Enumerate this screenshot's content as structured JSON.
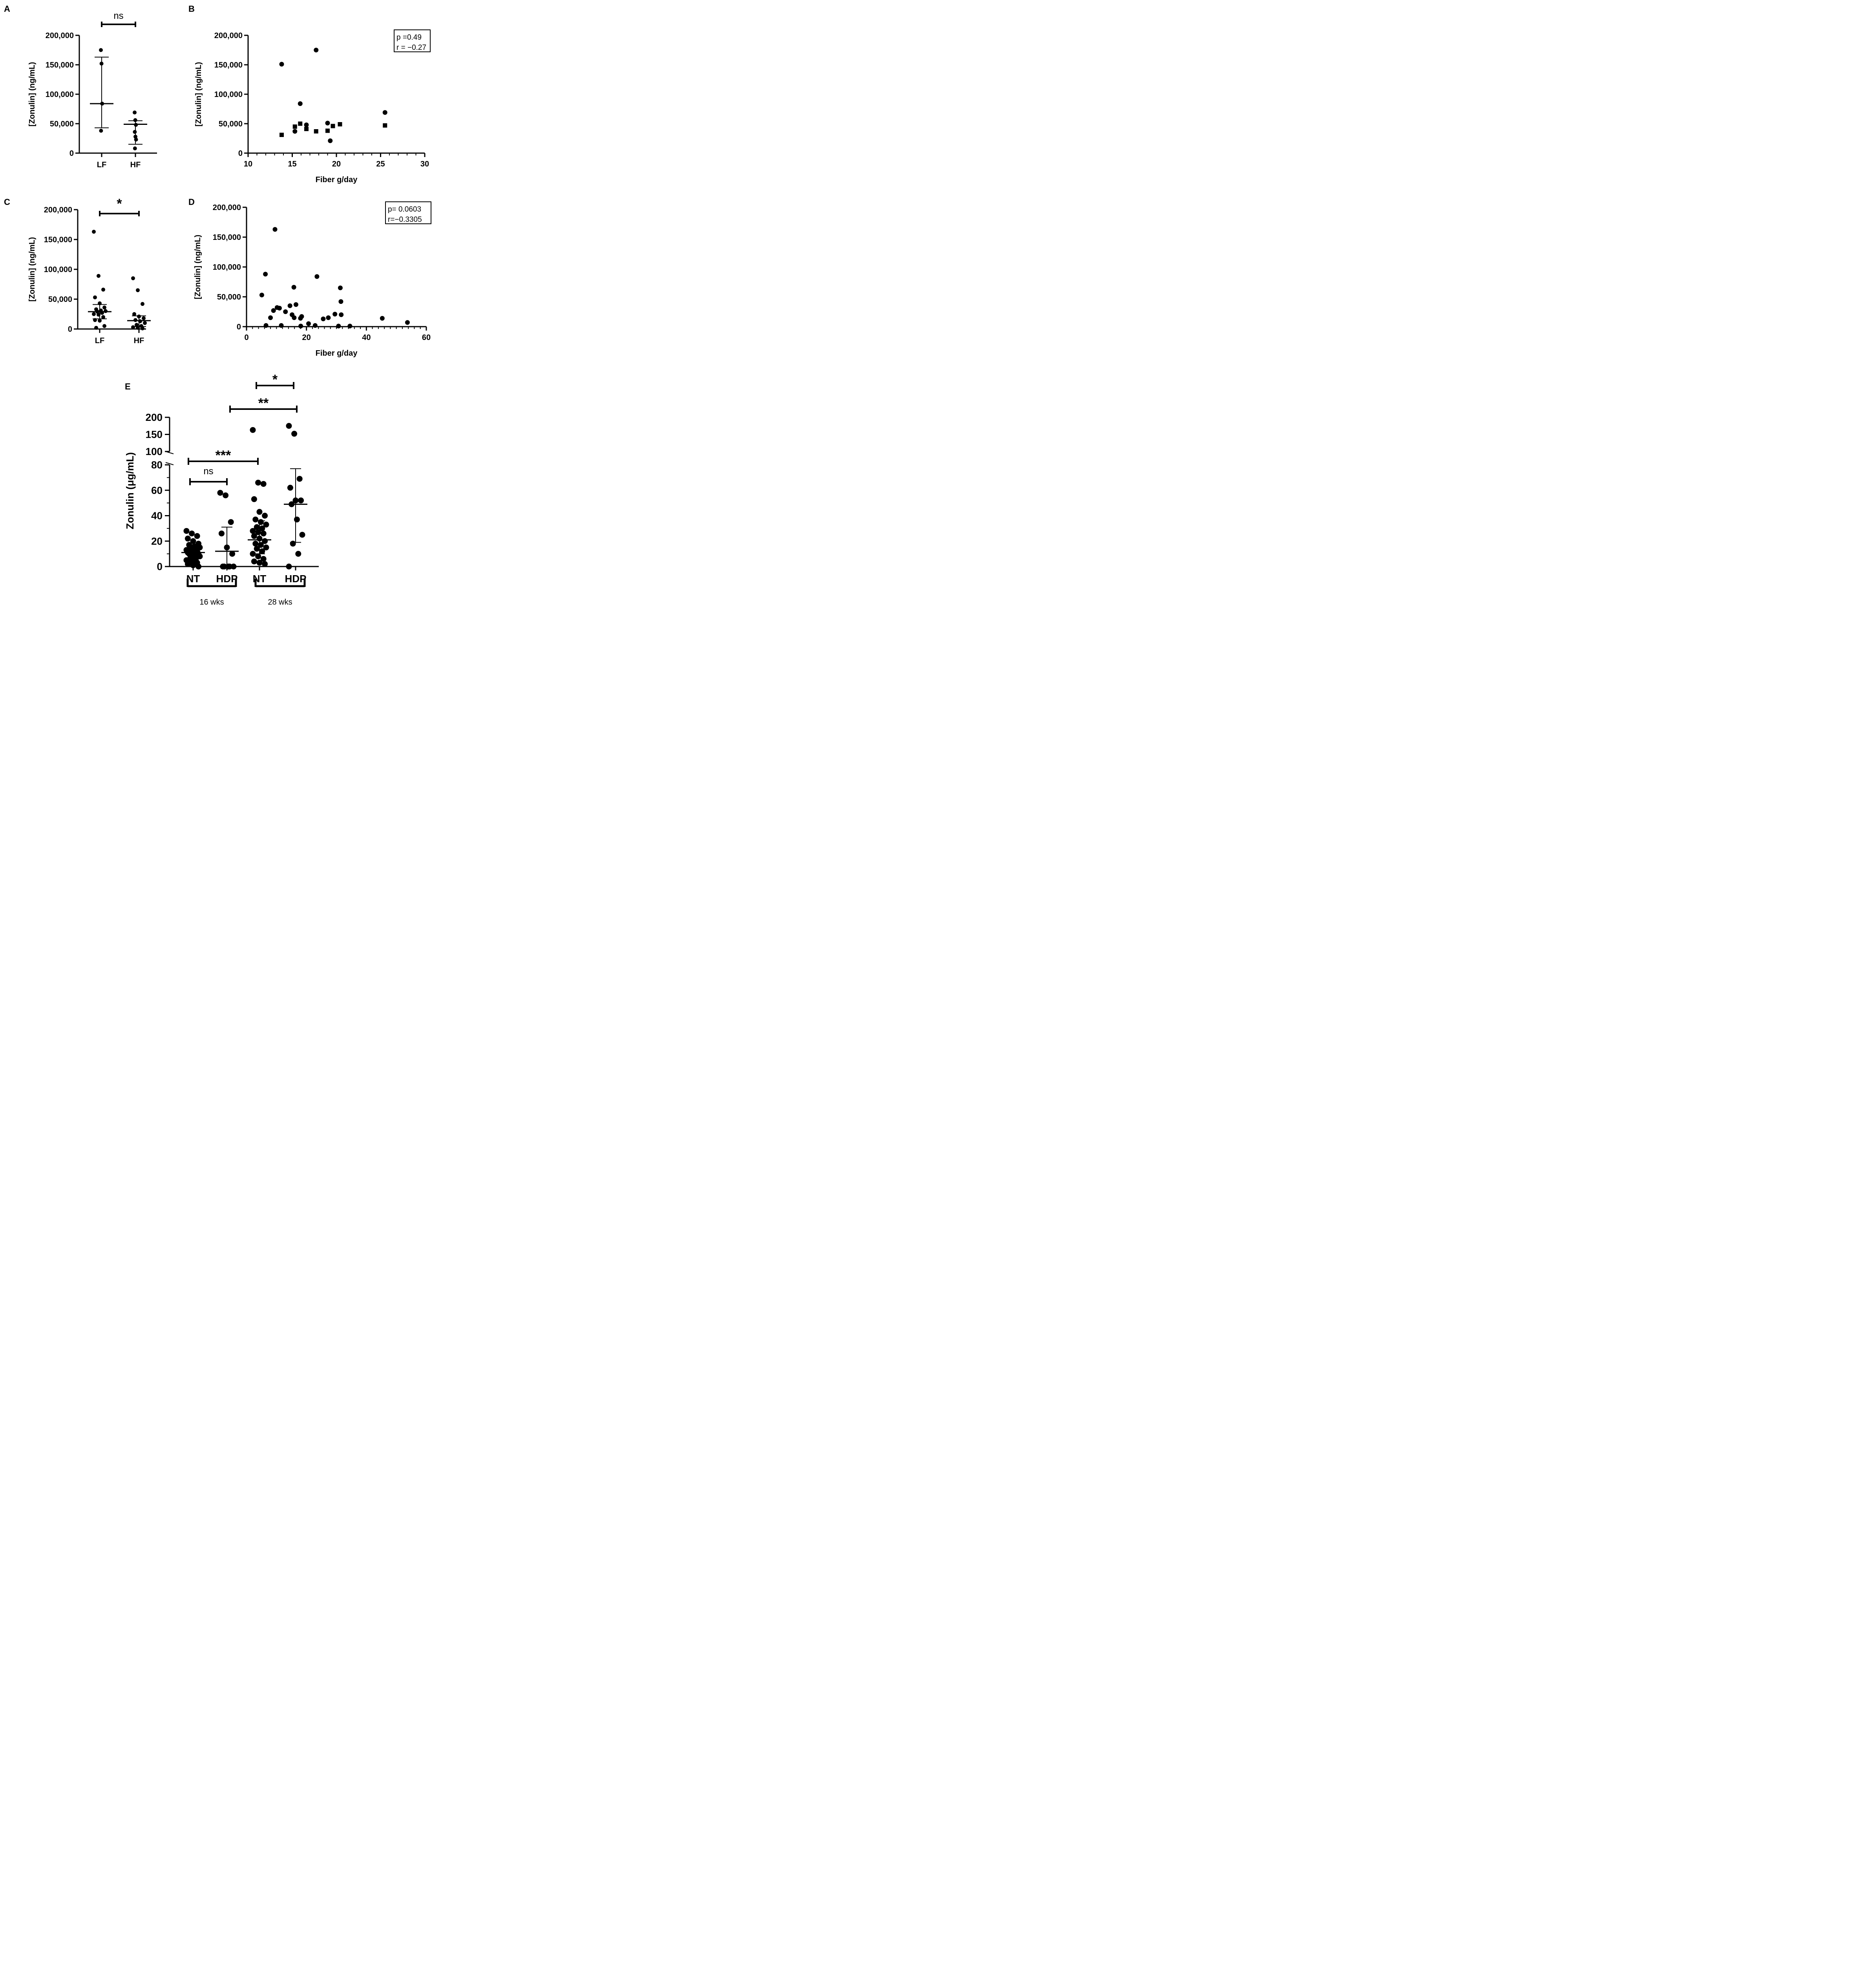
{
  "chart_data": [
    {
      "panel": "A",
      "type": "scatter",
      "categories": [
        "LF",
        "HF"
      ],
      "ylabel": "[Zonulin] (ng/mL)",
      "ylim": [
        0,
        200000
      ],
      "yticks": [
        "0",
        "50,000",
        "100,000",
        "150,000",
        "200,000"
      ],
      "groups": [
        {
          "name": "LF",
          "values": [
            175000,
            152000,
            84000,
            38000
          ],
          "median": 84000,
          "iqr": [
            43000,
            163000
          ]
        },
        {
          "name": "HF",
          "values": [
            69000,
            56000,
            48000,
            36000,
            28000,
            23000,
            8000
          ],
          "median": 49000,
          "iqr": [
            15000,
            55000
          ]
        }
      ],
      "annotations": [
        {
          "from": "LF",
          "to": "HF",
          "label": "ns"
        }
      ]
    },
    {
      "panel": "B",
      "type": "scatter",
      "xlabel": "Fiber g/day",
      "ylabel": "[Zonulin] (ng/mL)",
      "xlim": [
        10,
        30
      ],
      "ylim": [
        0,
        200000
      ],
      "xticks": [
        "10",
        "15",
        "20",
        "25",
        "30"
      ],
      "yticks": [
        "0",
        "50,000",
        "100,000",
        "150,000",
        "200,000"
      ],
      "series": [
        {
          "marker": "circle",
          "points": [
            [
              13.8,
              151000
            ],
            [
              17.7,
              175000
            ],
            [
              15.9,
              84000
            ],
            [
              15.3,
              37000
            ],
            [
              16.6,
              48000
            ],
            [
              19.0,
              51000
            ],
            [
              19.3,
              21000
            ],
            [
              25.5,
              69000
            ]
          ]
        },
        {
          "marker": "square",
          "points": [
            [
              13.8,
              31000
            ],
            [
              15.3,
              45000
            ],
            [
              15.9,
              50000
            ],
            [
              16.6,
              41000
            ],
            [
              17.7,
              37000
            ],
            [
              19.0,
              38000
            ],
            [
              19.6,
              46000
            ],
            [
              20.4,
              49000
            ],
            [
              25.5,
              47000
            ]
          ]
        }
      ],
      "stats": [
        "p =0.49",
        "r = −0.27"
      ]
    },
    {
      "panel": "C",
      "type": "scatter",
      "categories": [
        "LF",
        "HF"
      ],
      "ylabel": "[Zonulin] (ng/mL)",
      "ylim": [
        0,
        200000
      ],
      "yticks": [
        "0",
        "50,000",
        "100,000",
        "150,000",
        "200,000"
      ],
      "groups": [
        {
          "name": "LF",
          "values": [
            163000,
            89000,
            66000,
            53000,
            43000,
            36000,
            33000,
            31000,
            30000,
            29000,
            27000,
            25000,
            24000,
            20000,
            15000,
            14000,
            5000,
            2000
          ],
          "median": 29000,
          "iqr": [
            17000,
            41000
          ]
        },
        {
          "name": "HF",
          "values": [
            85000,
            65000,
            42000,
            25000,
            21000,
            18000,
            15000,
            13000,
            10000,
            7000,
            5000,
            3000,
            2000,
            1000
          ],
          "median": 14000,
          "iqr": [
            4000,
            22000
          ]
        }
      ],
      "annotations": [
        {
          "from": "LF",
          "to": "HF",
          "label": "*"
        }
      ]
    },
    {
      "panel": "D",
      "type": "scatter",
      "xlabel": "Fiber g/day",
      "ylabel": "[Zonulin] (ng/mL)",
      "xlim": [
        0,
        60
      ],
      "ylim": [
        0,
        200000
      ],
      "xticks": [
        "0",
        "20",
        "40",
        "60"
      ],
      "yticks": [
        "0",
        "50,000",
        "100,000",
        "150,000",
        "200,000"
      ],
      "points": [
        [
          9.5,
          163000
        ],
        [
          6.3,
          88000
        ],
        [
          23.5,
          84000
        ],
        [
          15.8,
          66000
        ],
        [
          31.3,
          65000
        ],
        [
          5.1,
          53000
        ],
        [
          31.5,
          42000
        ],
        [
          16.5,
          37000
        ],
        [
          14.5,
          35000
        ],
        [
          10.2,
          32000
        ],
        [
          11.0,
          31000
        ],
        [
          9.0,
          27000
        ],
        [
          13.0,
          25000
        ],
        [
          15.2,
          20000
        ],
        [
          29.5,
          21000
        ],
        [
          31.6,
          20000
        ],
        [
          18.4,
          17000
        ],
        [
          8.0,
          15000
        ],
        [
          15.9,
          15000
        ],
        [
          18.0,
          14000
        ],
        [
          25.6,
          13000
        ],
        [
          27.3,
          15000
        ],
        [
          45.3,
          14000
        ],
        [
          53.7,
          7000
        ],
        [
          20.7,
          5000
        ],
        [
          6.5,
          2000
        ],
        [
          11.6,
          2000
        ],
        [
          18.1,
          1000
        ],
        [
          22.9,
          2000
        ],
        [
          30.7,
          1000
        ],
        [
          34.5,
          1000
        ]
      ],
      "stats": [
        "p= 0.0603",
        "r=−0.3305"
      ]
    },
    {
      "panel": "E",
      "type": "scatter",
      "categories": [
        "NT",
        "HDP",
        "NT",
        "HDP"
      ],
      "group_labels": [
        "16 wks",
        "28 wks"
      ],
      "ylabel": "Zonulin (μg/mL)",
      "ylim": [
        0,
        200
      ],
      "axis_break": [
        80,
        100
      ],
      "yticks_lower": [
        "0",
        "20",
        "40",
        "60",
        "80"
      ],
      "yticks_upper": [
        "100",
        "150",
        "200"
      ],
      "groups": [
        {
          "name": "NT 16 wks",
          "values": [
            28,
            26,
            24,
            22,
            20,
            18,
            17,
            16,
            15,
            14,
            13,
            13,
            12,
            12,
            11,
            11,
            10,
            10,
            9,
            8,
            7,
            6,
            5,
            4,
            3,
            2,
            1,
            0
          ],
          "median": 11,
          "iqr": [
            5,
            14
          ]
        },
        {
          "name": "HDP 16 wks",
          "values": [
            58,
            56,
            35,
            26,
            15,
            10,
            0,
            0,
            0,
            0,
            0
          ],
          "median": 12,
          "iqr": [
            0,
            31
          ]
        },
        {
          "name": "NT 28 wks",
          "values": [
            163,
            66,
            65,
            53,
            43,
            40,
            37,
            35,
            33,
            31,
            30,
            28,
            27,
            26,
            24,
            22,
            20,
            18,
            17,
            15,
            14,
            12,
            10,
            8,
            6,
            4,
            3,
            2
          ],
          "median": 21,
          "iqr": [
            10,
            36
          ]
        },
        {
          "name": "HDP 28 wks",
          "values": [
            175,
            152,
            69,
            62,
            52,
            52,
            49,
            37,
            25,
            18,
            10,
            0
          ],
          "median": 49,
          "iqr": [
            19,
            77
          ]
        }
      ],
      "annotations": [
        {
          "from": 2,
          "to": 3,
          "label": "*"
        },
        {
          "from": 1,
          "to": 3,
          "label": "**"
        },
        {
          "from": 0,
          "to": 2,
          "label": "***"
        },
        {
          "from": 0,
          "to": 1,
          "label": "ns"
        }
      ]
    }
  ]
}
